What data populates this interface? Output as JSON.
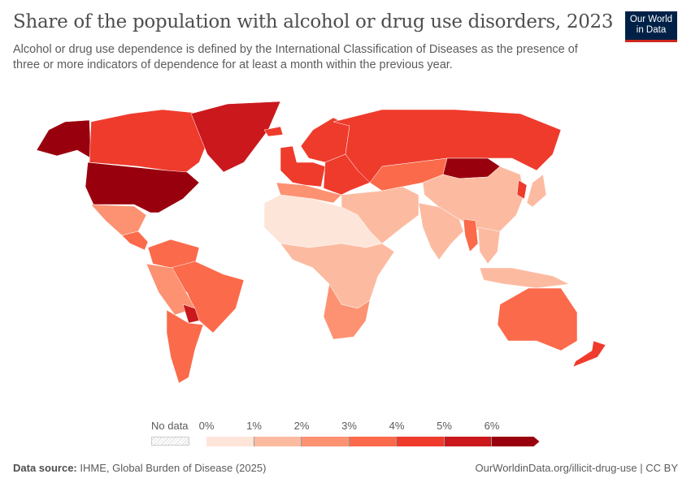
{
  "header": {
    "title": "Share of the population with alcohol or drug use disorders, 2023",
    "subtitle": "Alcohol or drug use dependence is defined by the International Classification of Diseases as the presence of three or more indicators of dependence for at least a month within the previous year.",
    "logo_text": "Our World in Data"
  },
  "legend": {
    "no_data_label": "No data",
    "ticks": [
      "0%",
      "1%",
      "2%",
      "3%",
      "4%",
      "5%",
      "6%"
    ],
    "colors": [
      "#fee5d9",
      "#fcbba1",
      "#fc9272",
      "#fb6a4a",
      "#ef3b2c",
      "#cb181d",
      "#99000d"
    ]
  },
  "map": {
    "regions": [
      {
        "name": "Alaska (United States)",
        "bin": 6
      },
      {
        "name": "Canada",
        "bin": 4
      },
      {
        "name": "Greenland",
        "bin": 5
      },
      {
        "name": "United States",
        "bin": 6
      },
      {
        "name": "Mexico",
        "bin": 2
      },
      {
        "name": "Central America",
        "bin": 3
      },
      {
        "name": "Northern South America",
        "bin": 3
      },
      {
        "name": "Brazil",
        "bin": 3
      },
      {
        "name": "Peru / Bolivia",
        "bin": 2
      },
      {
        "name": "Paraguay",
        "bin": 5
      },
      {
        "name": "Argentina / Chile",
        "bin": 3
      },
      {
        "name": "Iceland",
        "bin": 4
      },
      {
        "name": "Scandinavia",
        "bin": 4
      },
      {
        "name": "Western Europe",
        "bin": 4
      },
      {
        "name": "Southern Europe",
        "bin": 2
      },
      {
        "name": "Eastern Europe",
        "bin": 4
      },
      {
        "name": "Russia",
        "bin": 4
      },
      {
        "name": "Central Asia",
        "bin": 3
      },
      {
        "name": "Mongolia",
        "bin": 6
      },
      {
        "name": "China",
        "bin": 1
      },
      {
        "name": "Korea",
        "bin": 4
      },
      {
        "name": "Japan",
        "bin": 1
      },
      {
        "name": "Middle East",
        "bin": 1
      },
      {
        "name": "India",
        "bin": 1
      },
      {
        "name": "Myanmar",
        "bin": 3
      },
      {
        "name": "Southeast Asia",
        "bin": 1
      },
      {
        "name": "Indonesia",
        "bin": 1
      },
      {
        "name": "North Africa",
        "bin": 0
      },
      {
        "name": "Sub-Saharan Africa",
        "bin": 1
      },
      {
        "name": "Southern Africa",
        "bin": 2
      },
      {
        "name": "Australia",
        "bin": 3
      },
      {
        "name": "New Zealand",
        "bin": 4
      }
    ]
  },
  "footer": {
    "source_label": "Data source:",
    "source": "IHME, Global Burden of Disease (2025)",
    "url": "OurWorldinData.org/illicit-drug-use | CC BY"
  }
}
